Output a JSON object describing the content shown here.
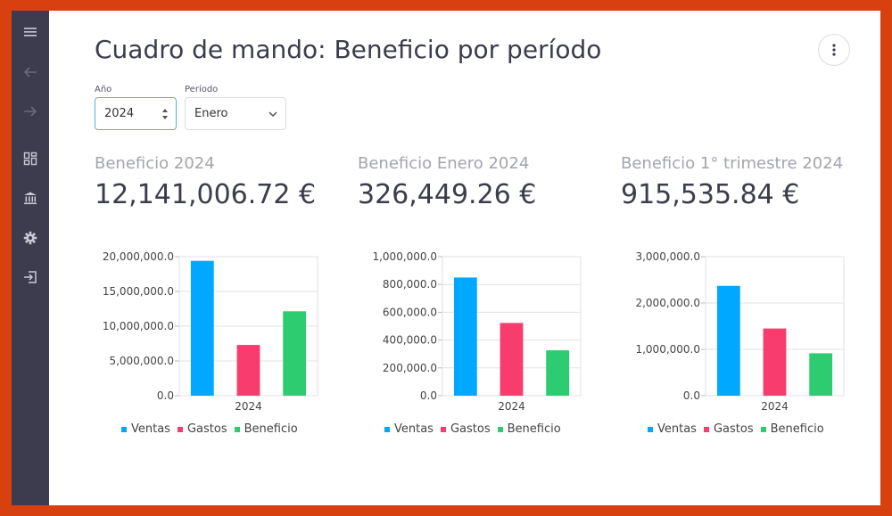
{
  "page": {
    "title": "Cuadro de mando: Beneficio por período"
  },
  "colors": {
    "sidebar": "#3c3c4e",
    "ventas": "#00a8ff",
    "gastos": "#f83d6e",
    "beneficio": "#2ecc71",
    "frame": "#d9400f"
  },
  "sidebar": {
    "icons": [
      "menu-icon",
      "arrow-back-icon",
      "arrow-forward-icon",
      "dashboard-icon",
      "bank-icon",
      "gear-icon",
      "login-icon"
    ]
  },
  "filters": {
    "year": {
      "label": "Año",
      "value": "2024"
    },
    "period": {
      "label": "Período",
      "value": "Enero"
    }
  },
  "kpis": [
    {
      "label": "Beneficio 2024",
      "value": "12,141,006.72 €"
    },
    {
      "label": "Beneficio Enero 2024",
      "value": "326,449.26 €"
    },
    {
      "label": "Beneficio 1° trimestre 2024",
      "value": "915,535.84 €"
    }
  ],
  "legend": {
    "ventas": "Ventas",
    "gastos": "Gastos",
    "beneficio": "Beneficio"
  },
  "chart_data": [
    {
      "type": "bar",
      "categories": [
        "2024"
      ],
      "series": [
        {
          "name": "Ventas",
          "values": [
            19400000
          ]
        },
        {
          "name": "Gastos",
          "values": [
            7300000
          ]
        },
        {
          "name": "Beneficio",
          "values": [
            12141006.72
          ]
        }
      ],
      "ylim": [
        0,
        20000000
      ],
      "yticks": [
        "0.0",
        "5,000,000.0",
        "10,000,000.0",
        "15,000,000.0",
        "20,000,000.0"
      ],
      "grid": true,
      "legend": "bottom"
    },
    {
      "type": "bar",
      "categories": [
        "2024"
      ],
      "series": [
        {
          "name": "Ventas",
          "values": [
            850000
          ]
        },
        {
          "name": "Gastos",
          "values": [
            523000
          ]
        },
        {
          "name": "Beneficio",
          "values": [
            326449.26
          ]
        }
      ],
      "ylim": [
        0,
        1000000
      ],
      "yticks": [
        "0.0",
        "200,000.0",
        "400,000.0",
        "600,000.0",
        "800,000.0",
        "1,000,000.0"
      ],
      "grid": true,
      "legend": "bottom"
    },
    {
      "type": "bar",
      "categories": [
        "2024"
      ],
      "series": [
        {
          "name": "Ventas",
          "values": [
            2370000
          ]
        },
        {
          "name": "Gastos",
          "values": [
            1450000
          ]
        },
        {
          "name": "Beneficio",
          "values": [
            915535.84
          ]
        }
      ],
      "ylim": [
        0,
        3000000
      ],
      "yticks": [
        "0.0",
        "1,000,000.0",
        "2,000,000.0",
        "3,000,000.0"
      ],
      "grid": true,
      "legend": "bottom"
    }
  ]
}
